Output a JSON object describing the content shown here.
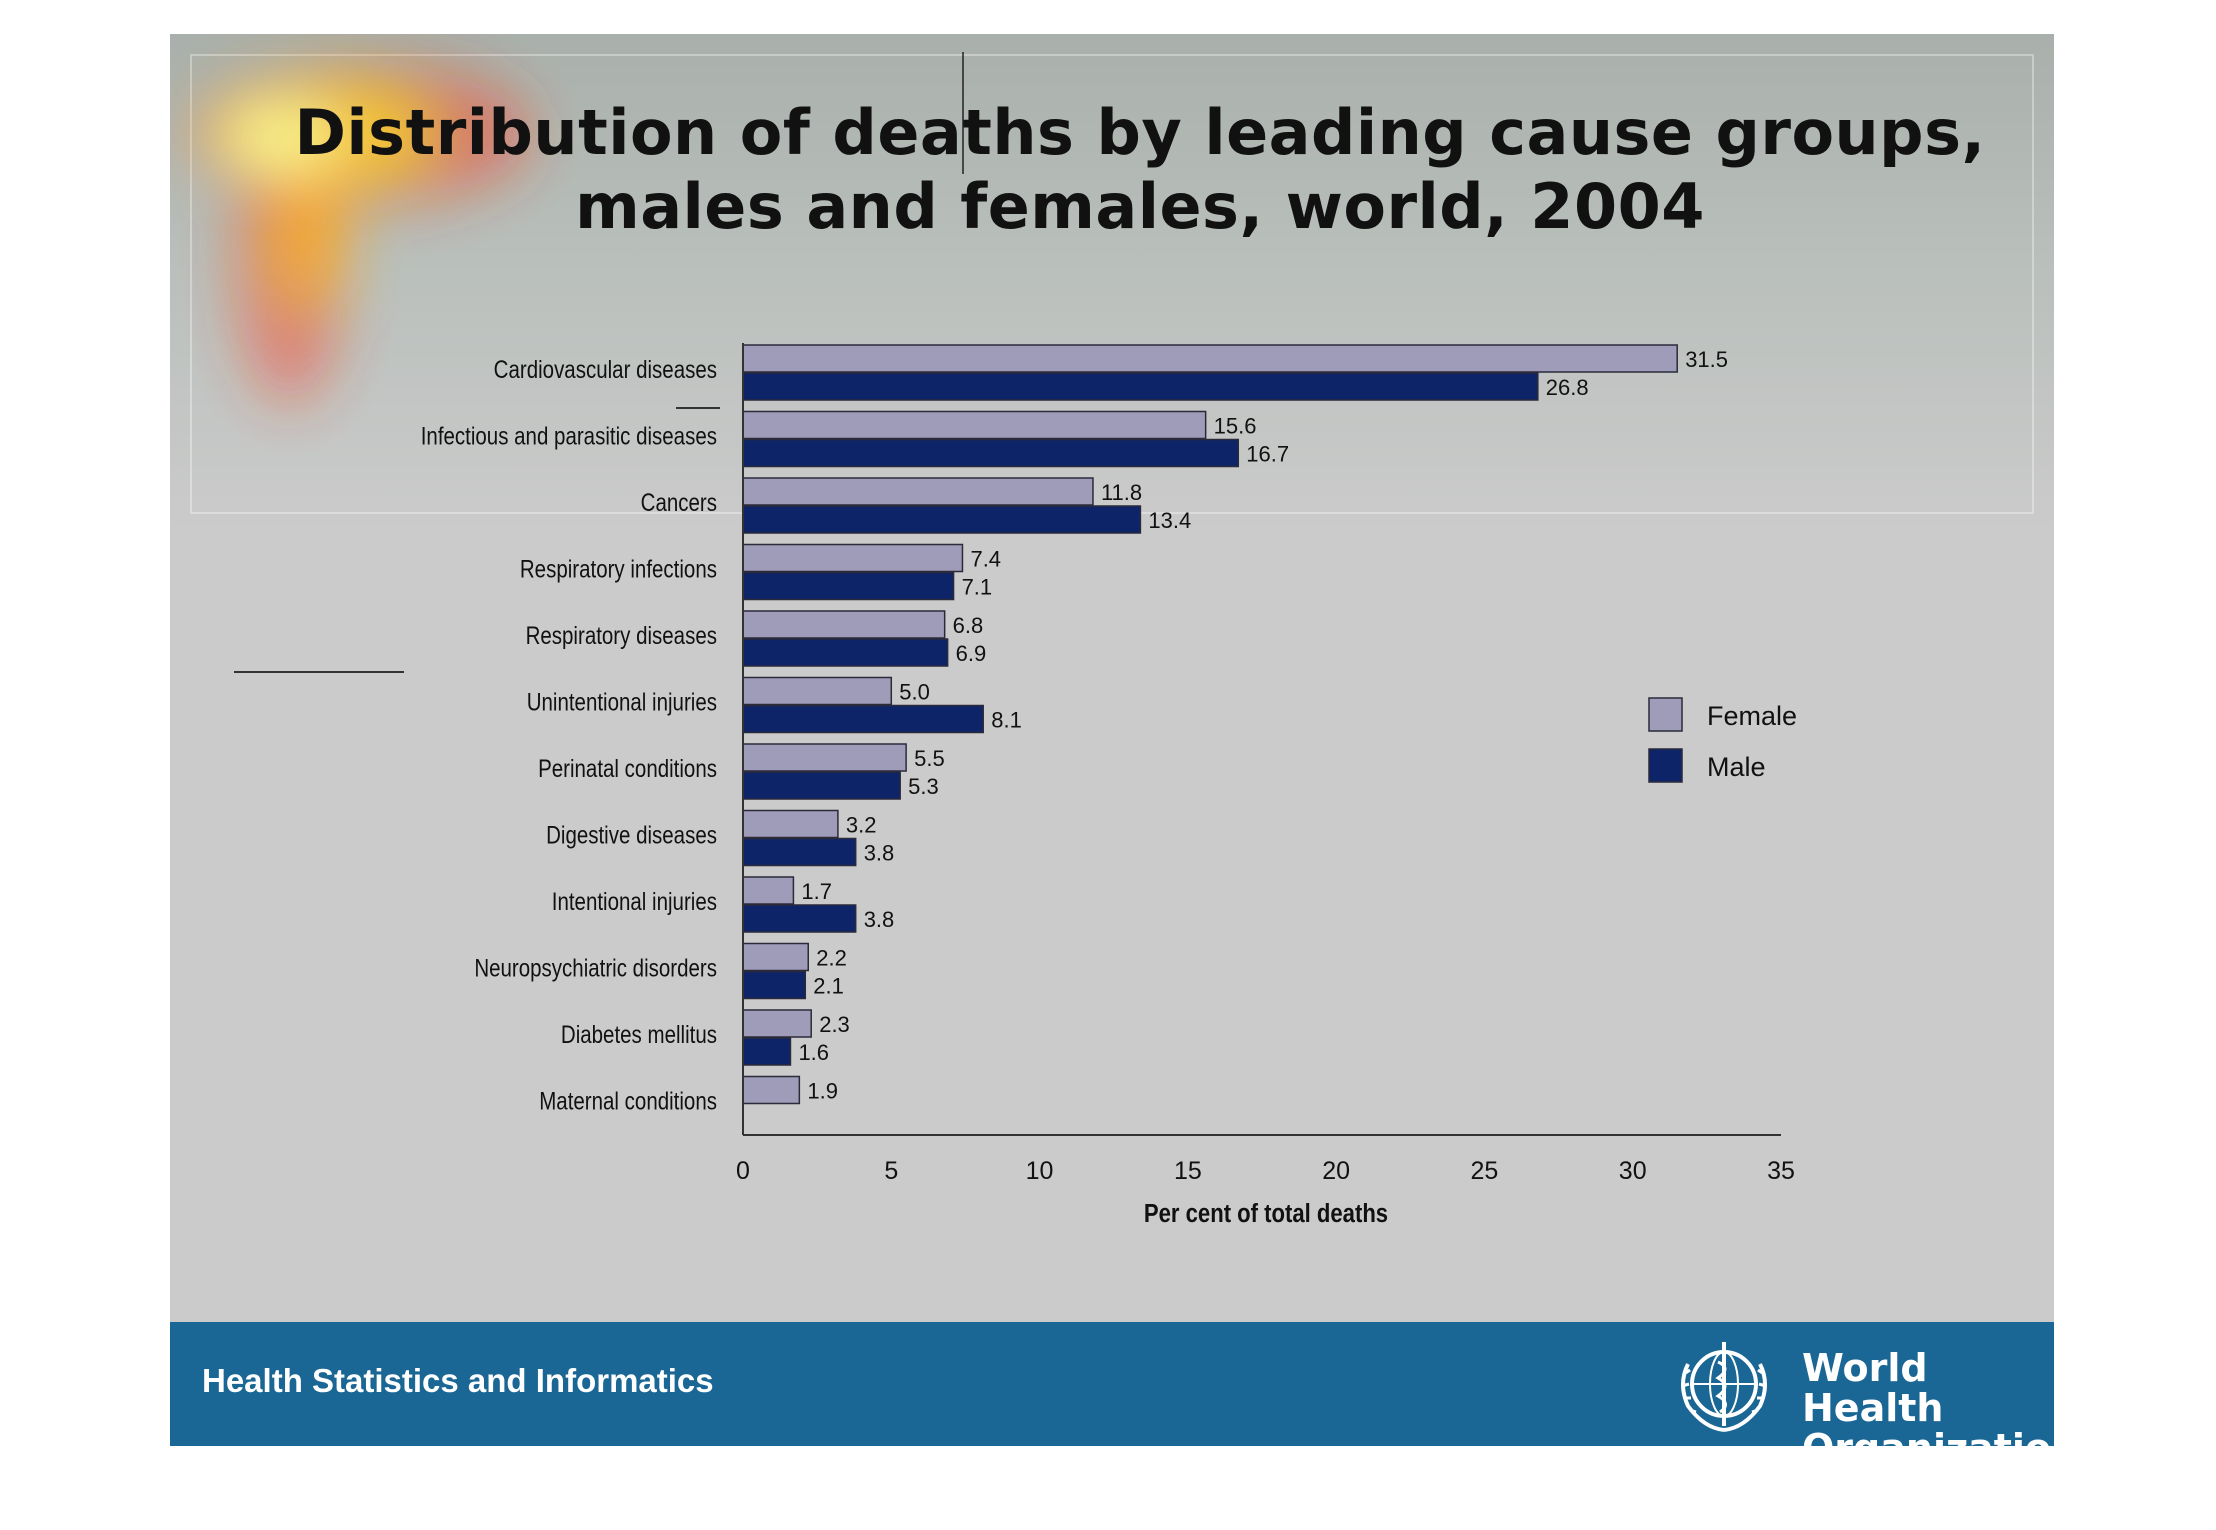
{
  "slide": {
    "title_line1": "Distribution of deaths by leading cause groups,",
    "title_line2": "males and females, world, 2004",
    "footer_text": "Health Statistics and Informatics",
    "org_line1": "World Health",
    "org_line2": "Organization"
  },
  "colors": {
    "female": "#9e9cb8",
    "male": "#0d2468",
    "footer": "#1a6694",
    "slide_background": "#cbcbcb"
  },
  "icons": {
    "org_logo": "who-emblem-icon"
  },
  "chart_data": {
    "type": "bar",
    "orientation": "horizontal",
    "title": "Distribution of deaths by leading cause groups, males and females, world, 2004",
    "xlabel": "Per cent of total deaths",
    "ylabel": "",
    "xlim": [
      0,
      35
    ],
    "xticks": [
      0,
      5,
      10,
      15,
      20,
      25,
      30,
      35
    ],
    "grid": false,
    "legend_position": "right",
    "categories": [
      "Cardiovascular diseases",
      "Infectious and parasitic diseases",
      "Cancers",
      "Respiratory infections",
      "Respiratory diseases",
      "Unintentional injuries",
      "Perinatal conditions",
      "Digestive diseases",
      "Intentional injuries",
      "Neuropsychiatric disorders",
      "Diabetes mellitus",
      "Maternal conditions"
    ],
    "series": [
      {
        "name": "Female",
        "values": [
          31.5,
          15.6,
          11.8,
          7.4,
          6.8,
          5.0,
          5.5,
          3.2,
          1.7,
          2.2,
          2.3,
          1.9
        ]
      },
      {
        "name": "Male",
        "values": [
          26.8,
          16.7,
          13.4,
          7.1,
          6.9,
          8.1,
          5.3,
          3.8,
          3.8,
          2.1,
          1.6,
          null
        ]
      }
    ]
  }
}
